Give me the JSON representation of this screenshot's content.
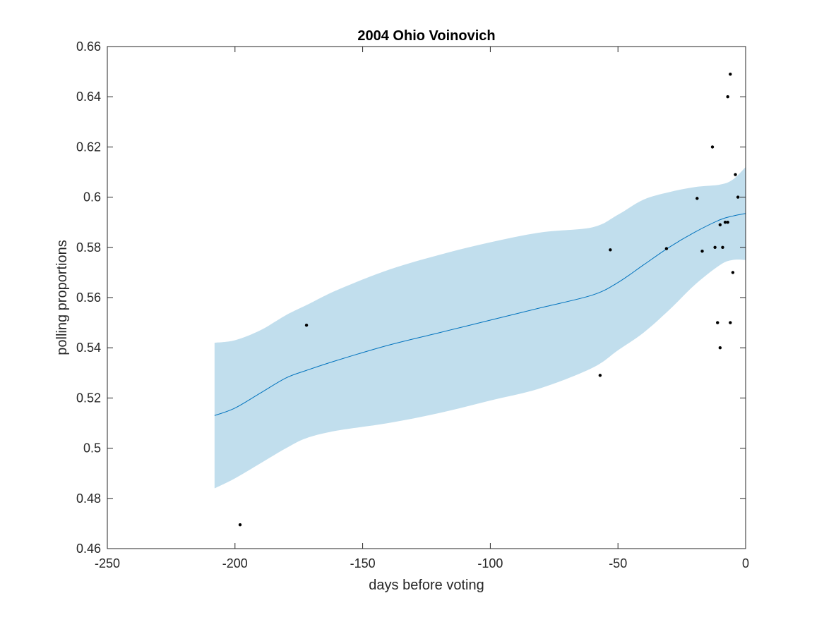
{
  "chart_data": {
    "type": "line",
    "title": "2004 Ohio Voinovich",
    "xlabel": "days before voting",
    "ylabel": "polling proportions",
    "xlim": [
      -250,
      0
    ],
    "ylim": [
      0.46,
      0.66
    ],
    "xticks": [
      -250,
      -200,
      -150,
      -100,
      -50,
      0
    ],
    "xtick_labels": [
      "-250",
      "-200",
      "-150",
      "-100",
      "-50",
      "0"
    ],
    "yticks": [
      0.46,
      0.48,
      0.5,
      0.52,
      0.54,
      0.56,
      0.58,
      0.6,
      0.62,
      0.64,
      0.66
    ],
    "ytick_labels": [
      "0.46",
      "0.48",
      "0.5",
      "0.52",
      "0.54",
      "0.56",
      "0.58",
      "0.6",
      "0.62",
      "0.64",
      "0.66"
    ],
    "grid": false,
    "colors": {
      "line": "#0072bd",
      "band": "#c1deed",
      "points": "#000000",
      "axes": "#262626"
    },
    "trend": {
      "x": [
        -208,
        -200,
        -190,
        -180,
        -172,
        -160,
        -140,
        -120,
        -100,
        -80,
        -60,
        -50,
        -40,
        -30,
        -20,
        -10,
        -5,
        0
      ],
      "y": [
        0.513,
        0.516,
        0.522,
        0.528,
        0.531,
        0.535,
        0.541,
        0.546,
        0.551,
        0.556,
        0.561,
        0.566,
        0.573,
        0.58,
        0.586,
        0.591,
        0.5925,
        0.5935
      ],
      "lower": [
        0.484,
        0.488,
        0.494,
        0.5,
        0.504,
        0.507,
        0.51,
        0.514,
        0.519,
        0.524,
        0.532,
        0.539,
        0.546,
        0.555,
        0.565,
        0.573,
        0.575,
        0.575
      ],
      "upper": [
        0.542,
        0.543,
        0.547,
        0.553,
        0.557,
        0.563,
        0.571,
        0.577,
        0.582,
        0.586,
        0.588,
        0.593,
        0.599,
        0.602,
        0.604,
        0.605,
        0.607,
        0.612
      ]
    },
    "points": {
      "x": [
        -198,
        -172,
        -57,
        -53,
        -31,
        -19,
        -17,
        -13,
        -12,
        -11,
        -10,
        -10,
        -9,
        -8,
        -7,
        -7,
        -6,
        -6,
        -5,
        -4,
        -3
      ],
      "y": [
        0.4695,
        0.549,
        0.529,
        0.579,
        0.5795,
        0.5995,
        0.5785,
        0.62,
        0.58,
        0.55,
        0.54,
        0.589,
        0.58,
        0.59,
        0.64,
        0.59,
        0.649,
        0.55,
        0.57,
        0.609,
        0.6
      ]
    }
  }
}
